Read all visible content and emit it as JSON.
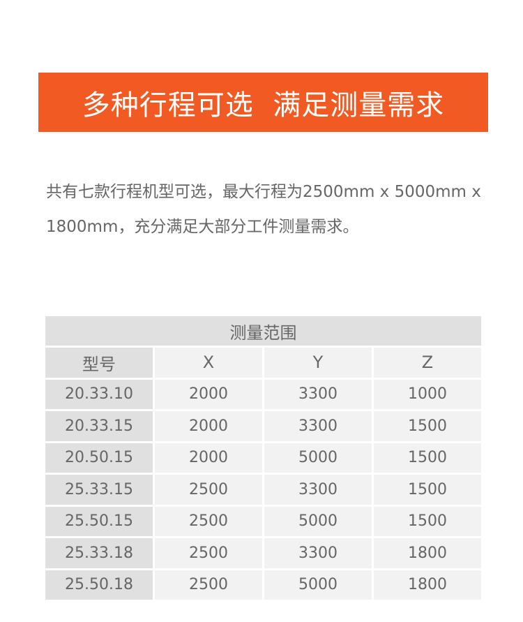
{
  "banner": {
    "title": "多种行程可选  满足测量需求",
    "color": "#f15a22"
  },
  "description": "共有七款行程机型可选，最大行程为2500mm x 5000mm x 1800mm，充分满足大部分工件测量需求。",
  "table": {
    "title": "测量范围",
    "headers": [
      "型号",
      "X",
      "Y",
      "Z"
    ],
    "rows": [
      [
        "20.33.10",
        "2000",
        "3300",
        "1000"
      ],
      [
        "20.33.15",
        "2000",
        "3300",
        "1500"
      ],
      [
        "20.50.15",
        "2000",
        "5000",
        "1500"
      ],
      [
        "25.33.15",
        "2500",
        "3300",
        "1500"
      ],
      [
        "25.50.15",
        "2500",
        "5000",
        "1500"
      ],
      [
        "25.33.18",
        "2500",
        "3300",
        "1800"
      ],
      [
        "25.50.18",
        "2500",
        "5000",
        "1800"
      ]
    ]
  }
}
